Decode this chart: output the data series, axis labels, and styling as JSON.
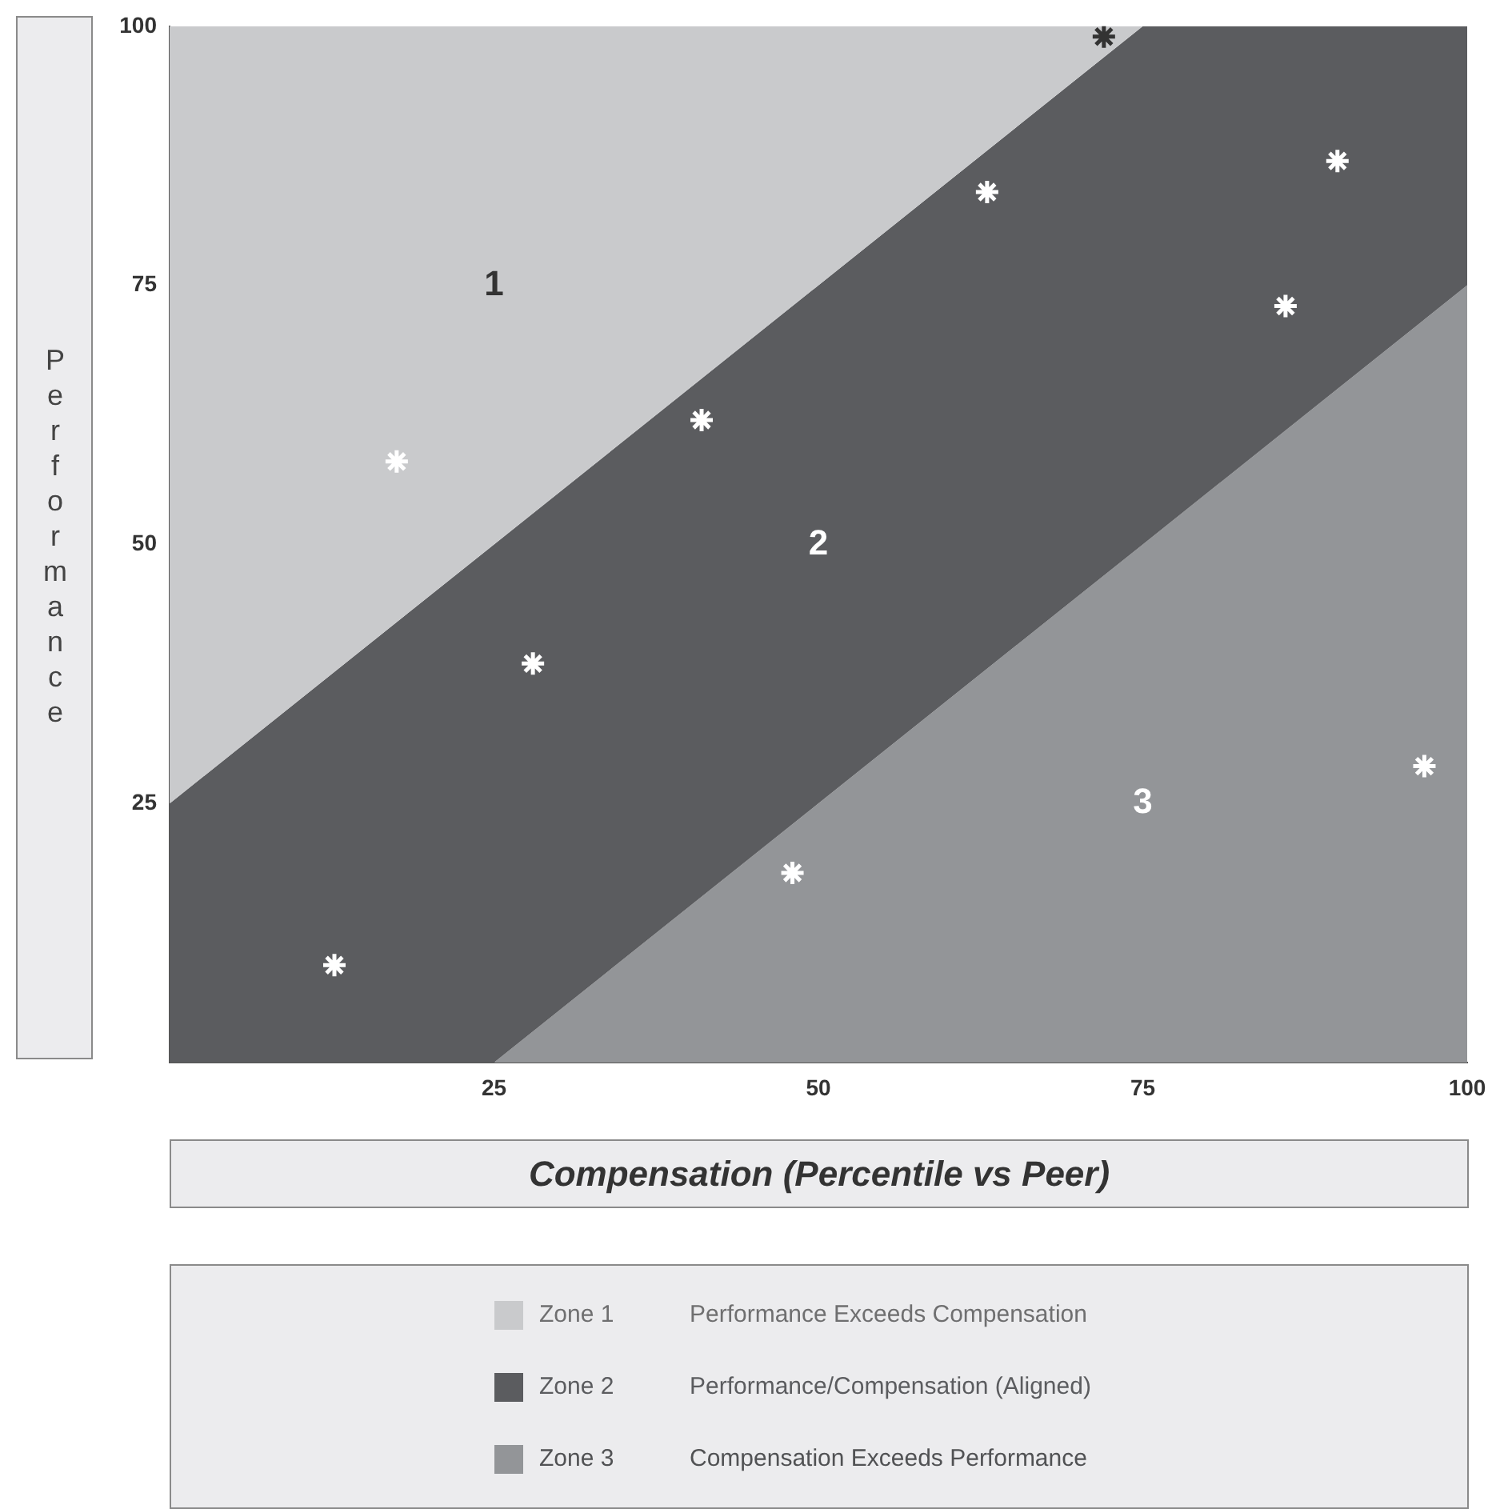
{
  "chart_data": {
    "type": "scatter",
    "xlabel": "Compensation (Percentile vs Peer)",
    "ylabel": "Performance",
    "xlim": [
      0,
      100
    ],
    "ylim": [
      0,
      100
    ],
    "xticks": [
      25,
      50,
      75,
      100
    ],
    "yticks": [
      25,
      50,
      75,
      100
    ],
    "grid": false,
    "legend": "bottom",
    "stacked": true,
    "series": [
      {
        "name": "Zone 3",
        "type": "area",
        "color": "#939598",
        "x": [
          0,
          25,
          75,
          100
        ],
        "values": [
          0,
          0,
          50,
          75
        ]
      },
      {
        "name": "Zone 2",
        "type": "area",
        "color": "#5b5c5f",
        "x": [
          0,
          25,
          75,
          100
        ],
        "values": [
          25,
          50,
          50,
          25
        ]
      },
      {
        "name": "Zone 1",
        "type": "area",
        "color": "#c9cacc",
        "x": [
          0,
          25,
          75,
          100
        ],
        "values": [
          75,
          50,
          0,
          0
        ]
      },
      {
        "marker": "cross",
        "colors": [
          "#333333",
          "#ffffff",
          "#ffffff",
          "#ffffff",
          "#ffffff",
          "#ffffff",
          "#ffffff",
          "#ffffff",
          "#ffffff",
          "#ffffff"
        ],
        "x": [
          72,
          63,
          90,
          86,
          41,
          17.5,
          28,
          48,
          12.7,
          96.7
        ],
        "values": [
          99,
          84,
          87,
          73,
          62,
          58,
          38.5,
          18.3,
          9.4,
          28.6
        ]
      }
    ],
    "annotations": [
      "1",
      "2",
      "3",
      "Performance Exceeds Compensation",
      "Performance/Compensation (Aligned)",
      "Compensation Exceeds Performance"
    ]
  }
}
